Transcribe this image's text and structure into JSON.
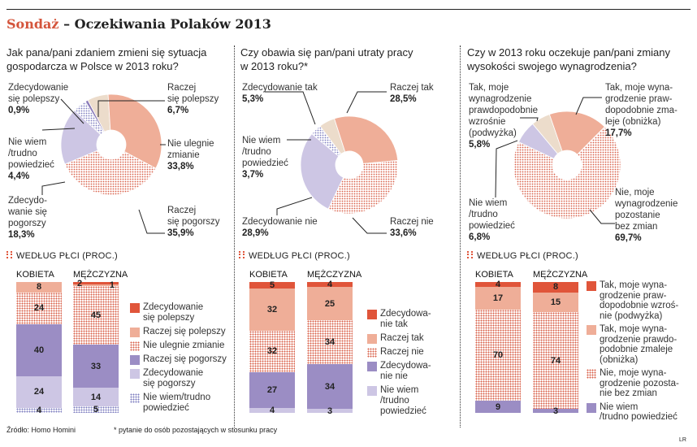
{
  "header": {
    "highlight": "Sondaż",
    "rest": " – Oczekiwania Polaków 2013"
  },
  "footer": {
    "source": "Źródło: Homo Homini",
    "note": "* pytanie do osób pozostających w stosunku pracy",
    "credit": "LR"
  },
  "colors": {
    "accent": "#d4553c",
    "red_orange": "#e0553a",
    "salmon": "#efae98",
    "beige": "#ecdccb",
    "purple": "#9b8dc4",
    "lavender": "#cdc6e4",
    "dark_purple": "#8a7ab8"
  },
  "chart_data": [
    {
      "type": "pie",
      "title": "Jak pana/pani zdaniem zmieni się sytuacja gospodarcza w Polsce w 2013 roku?",
      "slices": [
        {
          "label": "Zdecydowanie\nsię polepszy",
          "value": 0.9,
          "value_label": "0,9%",
          "fill": "#8a7ab8"
        },
        {
          "label": "Raczej\nsię polepszy",
          "value": 6.7,
          "value_label": "6,7%",
          "fill": "#ecdccb"
        },
        {
          "label": "Nie ulegnie\nzmianie",
          "value": 33.8,
          "value_label": "33,8%",
          "fill": "#efae98"
        },
        {
          "label": "Raczej\nsię pogorszy",
          "value": 35.9,
          "value_label": "35,9%",
          "fill": "red-dots"
        },
        {
          "label": "Zdecydo-\nwanie się\npogorszy",
          "value": 18.3,
          "value_label": "18,3%",
          "fill": "#cdc6e4"
        },
        {
          "label": "Nie wiem\n/trudno\npowiedzieć",
          "value": 4.4,
          "value_label": "4,4%",
          "fill": "blue-dots"
        }
      ]
    },
    {
      "type": "pie",
      "title": "Czy obawia się pan/pani utraty pracy w 2013 roku?*",
      "slices": [
        {
          "label": "Zdecydowanie tak",
          "value": 5.3,
          "value_label": "5,3%",
          "fill": "#ecdccb"
        },
        {
          "label": "Raczej tak",
          "value": 28.5,
          "value_label": "28,5%",
          "fill": "#efae98"
        },
        {
          "label": "Raczej nie",
          "value": 33.6,
          "value_label": "33,6%",
          "fill": "red-dots"
        },
        {
          "label": "Zdecydowanie nie",
          "value": 28.9,
          "value_label": "28,9%",
          "fill": "#cdc6e4"
        },
        {
          "label": "Nie wiem\n/trudno\npowiedzieć",
          "value": 3.7,
          "value_label": "3,7%",
          "fill": "blue-dots"
        }
      ]
    },
    {
      "type": "pie",
      "title": "Czy w 2013 roku oczekuje pan/pani zmiany wysokości swojego wynagrodzenia?",
      "slices": [
        {
          "label": "Tak, moje\nwynagrodzenie\nprawdopodobnie\nwzrośnie\n(podwyżka)",
          "value": 5.8,
          "value_label": "5,8%",
          "fill": "#ecdccb"
        },
        {
          "label": "Tak, moje wyna-\ngrodzenie praw-\ndopodobnie zma-\nleje (obniżka)",
          "value": 17.7,
          "value_label": "17,7%",
          "fill": "#efae98"
        },
        {
          "label": "Nie, moje\nwynagrodzenie\npozostanie\nbez zmian",
          "value": 69.7,
          "value_label": "69,7%",
          "fill": "red-dots"
        },
        {
          "label": "Nie wiem\n/trudno\npowiedzieć",
          "value": 6.8,
          "value_label": "6,8%",
          "fill": "#cdc6e4"
        }
      ]
    },
    {
      "type": "bar",
      "stacked": true,
      "title": "WEDŁUG PŁCI (PROC.)",
      "categories": [
        "KOBIETA",
        "MĘŻCZYZNA"
      ],
      "ylim": [
        0,
        100
      ],
      "series": [
        {
          "name": "Zdecydowanie\nsię polepszy",
          "values": [
            0,
            2
          ],
          "fill": "#e0553a"
        },
        {
          "name": "Raczej się polepszy",
          "values": [
            8,
            1
          ],
          "fill": "#efae98"
        },
        {
          "name": "Nie ulegnie zmianie",
          "values": [
            24,
            45
          ],
          "fill": "red-dots"
        },
        {
          "name": "Raczej się pogorszy",
          "values": [
            40,
            33
          ],
          "fill": "#9b8dc4"
        },
        {
          "name": "Zdecydowanie\nsię pogorszy",
          "values": [
            24,
            14
          ],
          "fill": "#cdc6e4"
        },
        {
          "name": "Nie wiem/trudno\npowiedzieć",
          "values": [
            4,
            5
          ],
          "fill": "blue-dots"
        }
      ]
    },
    {
      "type": "bar",
      "stacked": true,
      "title": "WEDŁUG PŁCI (PROC.)",
      "categories": [
        "KOBIETA",
        "MĘŻCZYZNA"
      ],
      "ylim": [
        0,
        100
      ],
      "series": [
        {
          "name": "Zdecydowa-\nnie tak",
          "values": [
            5,
            4
          ],
          "fill": "#e0553a"
        },
        {
          "name": "Raczej tak",
          "values": [
            32,
            25
          ],
          "fill": "#efae98"
        },
        {
          "name": "Raczej nie",
          "values": [
            32,
            34
          ],
          "fill": "red-dots"
        },
        {
          "name": "Zdecydowa-\nnie nie",
          "values": [
            27,
            34
          ],
          "fill": "#9b8dc4"
        },
        {
          "name": "Nie wiem\n/trudno\npowiedzieć",
          "values": [
            4,
            3
          ],
          "fill": "#cdc6e4"
        }
      ]
    },
    {
      "type": "bar",
      "stacked": true,
      "title": "WEDŁUG PŁCI (PROC.)",
      "categories": [
        "KOBIETA",
        "MĘŻCZYZNA"
      ],
      "ylim": [
        0,
        100
      ],
      "series": [
        {
          "name": "Tak, moje wyna-\ngrodzenie praw-\ndopodobnie wzroś-\nnie (podwyżka)",
          "values": [
            4,
            8
          ],
          "fill": "#e0553a"
        },
        {
          "name": "Tak, moje wyna-\ngrodzenie prawdo-\npodobnie zmaleje\n(obniżka)",
          "values": [
            17,
            15
          ],
          "fill": "#efae98"
        },
        {
          "name": "Nie, moje wyna-\ngrodzenie pozosta-\nnie bez zmian",
          "values": [
            70,
            74
          ],
          "fill": "red-dots"
        },
        {
          "name": "Nie wiem\n/trudno powiedzieć",
          "values": [
            9,
            3
          ],
          "fill": "#9b8dc4"
        }
      ]
    }
  ]
}
